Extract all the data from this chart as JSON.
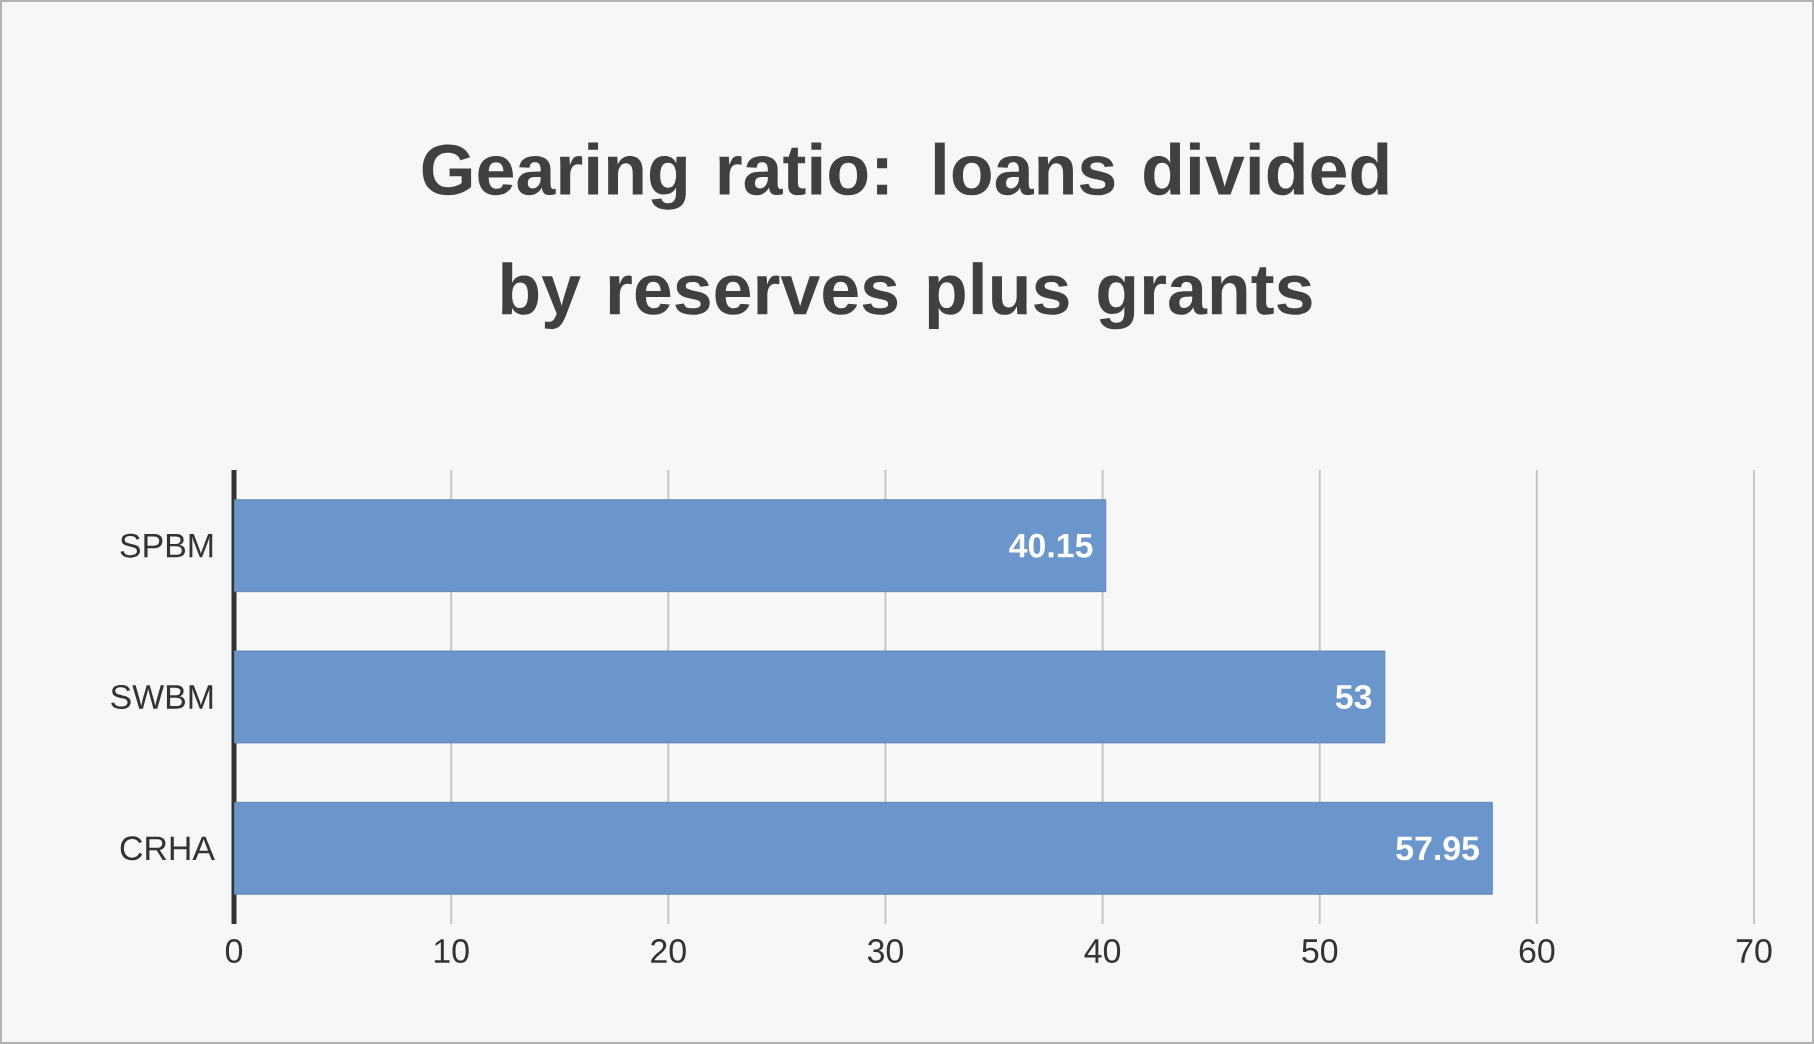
{
  "chart_data": {
    "type": "bar",
    "orientation": "horizontal",
    "title": "Gearing ratio: loans divided by reserves plus grants",
    "categories": [
      "SPBM",
      "SWBM",
      "CRHA"
    ],
    "values": [
      40.15,
      53,
      57.95
    ],
    "color": "#6a96cc",
    "xlim": [
      0,
      70
    ],
    "xticks": [
      0,
      10,
      20,
      30,
      40,
      50,
      60,
      70
    ],
    "grid": "x",
    "data_labels": true
  }
}
